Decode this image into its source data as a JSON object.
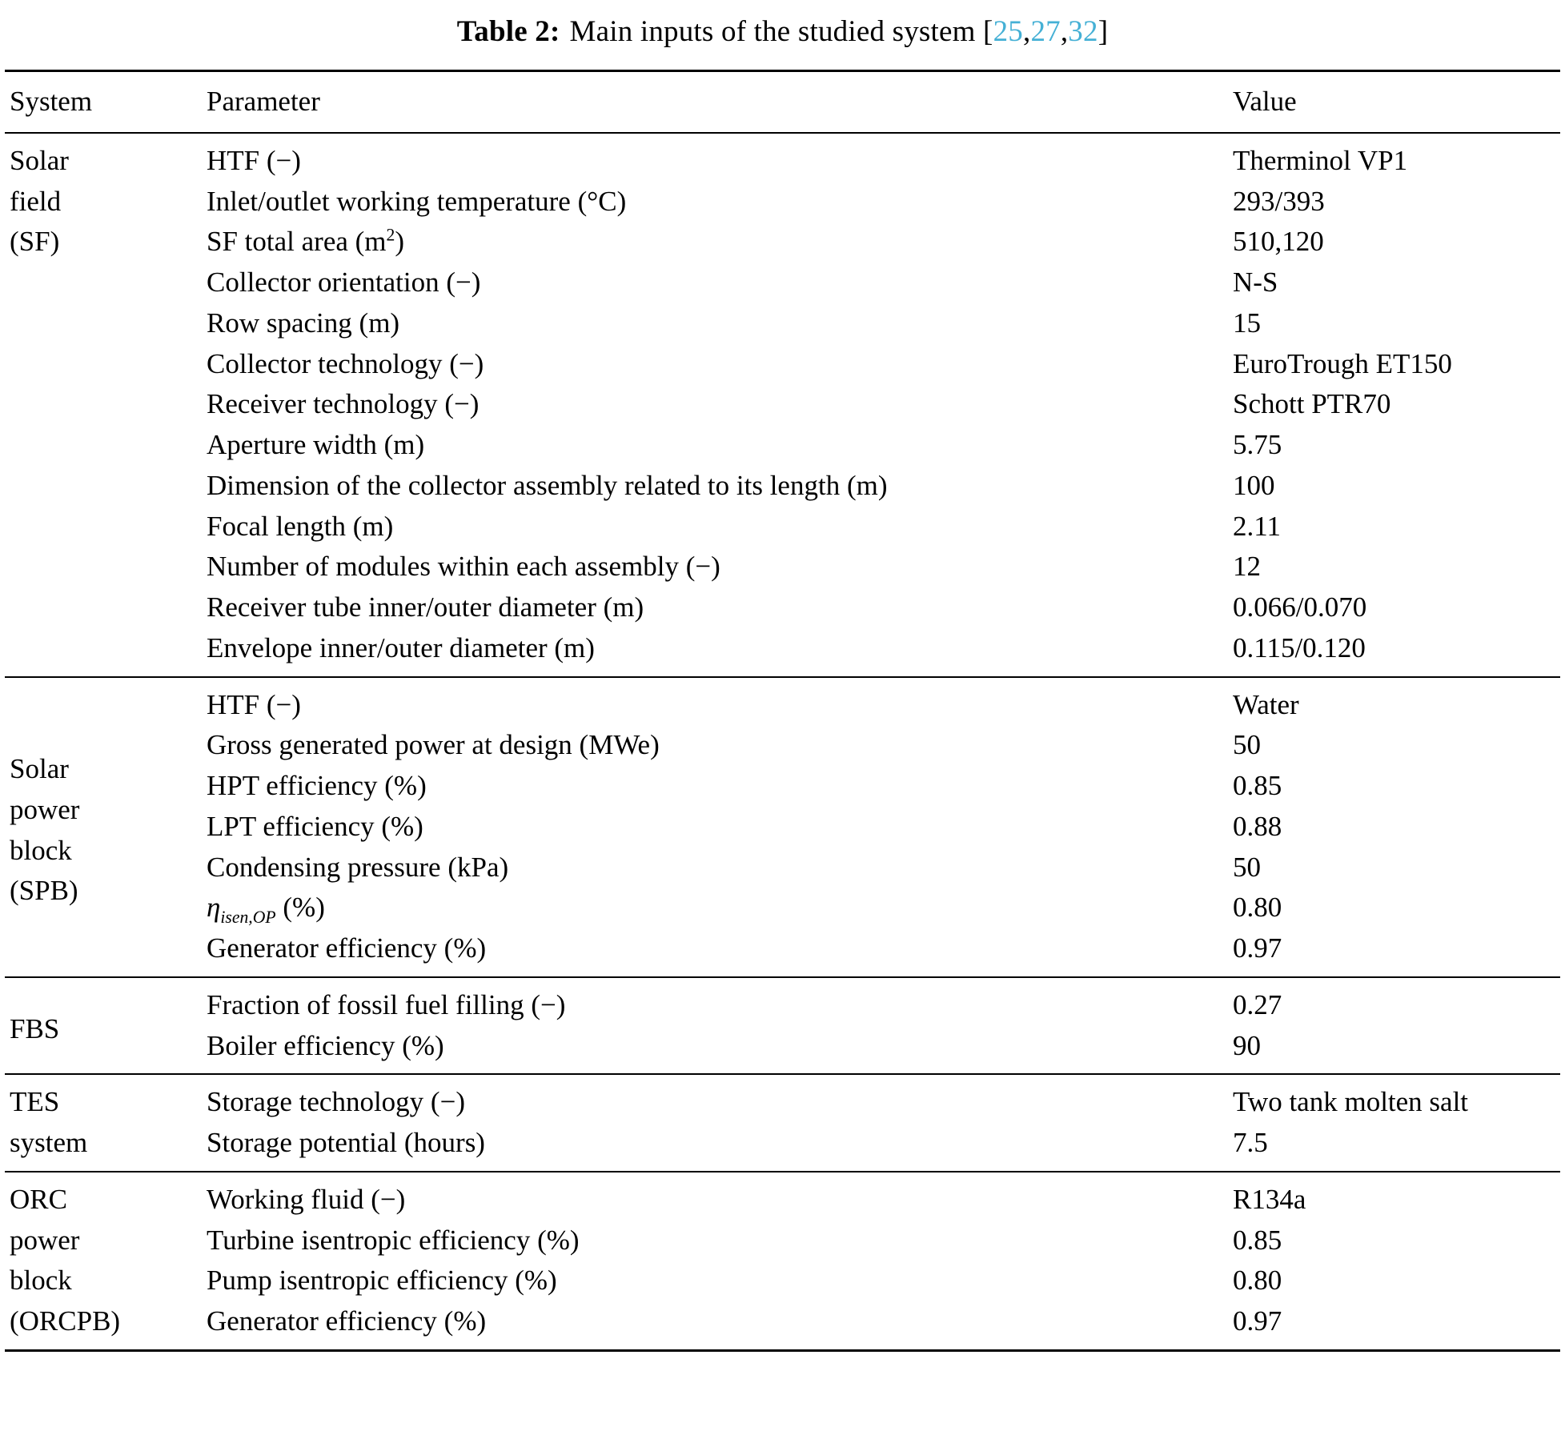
{
  "title": {
    "label": "Table 2:",
    "text": "Main inputs of the studied system",
    "bracket_open": "[",
    "bracket_close": "]",
    "separator": ",",
    "refs": [
      "25",
      "27",
      "32"
    ]
  },
  "colors": {
    "ref_link": "#45b0d5",
    "text": "#000000",
    "rule": "#000000"
  },
  "columns": [
    "System",
    "Parameter",
    "Value"
  ],
  "sections": [
    {
      "system": "Solar field (SF)",
      "system_lines": [
        "Solar",
        "field",
        "(SF)"
      ],
      "rows": [
        {
          "parameter": "HTF (−)",
          "value": "Therminol VP1"
        },
        {
          "parameter": "Inlet/outlet working temperature (°C)",
          "value": "293/393"
        },
        {
          "parameter": "SF total area (m^{2})",
          "value": "510,120"
        },
        {
          "parameter": "Collector orientation (−)",
          "value": "N-S"
        },
        {
          "parameter": "Row spacing (m)",
          "value": "15"
        },
        {
          "parameter": "Collector technology (−)",
          "value": "EuroTrough ET150"
        },
        {
          "parameter": "Receiver technology (−)",
          "value": "Schott PTR70"
        },
        {
          "parameter": "Aperture width (m)",
          "value": "5.75"
        },
        {
          "parameter": "Dimension of the collector assembly related to its length (m)",
          "value": "100"
        },
        {
          "parameter": "Focal length (m)",
          "value": "2.11"
        },
        {
          "parameter": "Number of modules within each assembly (−)",
          "value": "12"
        },
        {
          "parameter": "Receiver tube inner/outer diameter (m)",
          "value": "0.066/0.070"
        },
        {
          "parameter": "Envelope inner/outer diameter (m)",
          "value": "0.115/0.120"
        }
      ]
    },
    {
      "system": "Solar power block (SPB)",
      "system_lines": [
        "Solar",
        "power",
        "block",
        "(SPB)"
      ],
      "rows": [
        {
          "parameter": "HTF (−)",
          "value": "Water"
        },
        {
          "parameter": "Gross generated power at design (MWe)",
          "value": "50"
        },
        {
          "parameter": "HPT efficiency (%)",
          "value": "0.85"
        },
        {
          "parameter": "LPT efficiency (%)",
          "value": "0.88"
        },
        {
          "parameter": "Condensing pressure (kPa)",
          "value": "50"
        },
        {
          "parameter": "*η*_{*isen,OP*} (%)",
          "value": "0.80"
        },
        {
          "parameter": "Generator efficiency (%)",
          "value": "0.97"
        }
      ]
    },
    {
      "system": "FBS",
      "system_lines": [
        "FBS"
      ],
      "rows": [
        {
          "parameter": "Fraction of fossil fuel filling (−)",
          "value": "0.27"
        },
        {
          "parameter": "Boiler efficiency (%)",
          "value": "90"
        }
      ]
    },
    {
      "system": "TES system",
      "system_lines": [
        "TES",
        "system"
      ],
      "rows": [
        {
          "parameter": "Storage technology (−)",
          "value": "Two tank molten salt"
        },
        {
          "parameter": "Storage potential (hours)",
          "value": "7.5"
        }
      ]
    },
    {
      "system": "ORC power block (ORCPB)",
      "system_lines": [
        "ORC",
        "power",
        "block",
        "(ORCPB)"
      ],
      "rows": [
        {
          "parameter": "Working fluid (−)",
          "value": "R134a"
        },
        {
          "parameter": "Turbine isentropic efficiency (%)",
          "value": "0.85"
        },
        {
          "parameter": "Pump isentropic efficiency (%)",
          "value": "0.80"
        },
        {
          "parameter": "Generator efficiency (%)",
          "value": "0.97"
        }
      ]
    }
  ]
}
